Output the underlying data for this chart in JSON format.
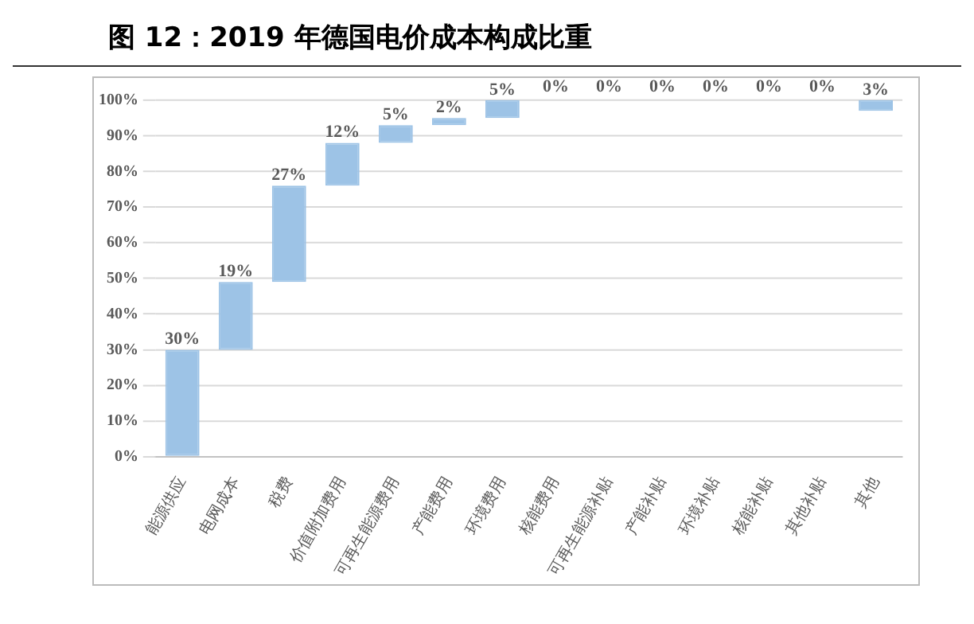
{
  "chart_data": {
    "type": "bar",
    "title": "图 12：2019 年德国电价成本构成比重",
    "categories": [
      "能源供应",
      "电网成本",
      "税费",
      "价值附加费用",
      "可再生能源费用",
      "产能费用",
      "环境费用",
      "核能费用",
      "可再生能源补贴",
      "产能补贴",
      "环境补贴",
      "核能补贴",
      "其他补贴",
      "其他"
    ],
    "values": [
      30,
      19,
      27,
      12,
      5,
      2,
      5,
      0,
      0,
      0,
      0,
      0,
      0,
      3
    ],
    "base": [
      0,
      30,
      49,
      76,
      88,
      93,
      95,
      100,
      100,
      100,
      100,
      100,
      100,
      97
    ],
    "value_labels": [
      "30%",
      "19%",
      "27%",
      "12%",
      "5%",
      "2%",
      "5%",
      "0%",
      "0%",
      "0%",
      "0%",
      "0%",
      "0%",
      "3%"
    ],
    "color": "#9dc3e6",
    "ylim": [
      0,
      100
    ],
    "yticks": [
      {
        "value": 0,
        "label": "0%"
      },
      {
        "value": 10,
        "label": "10%"
      },
      {
        "value": 20,
        "label": "20%"
      },
      {
        "value": 30,
        "label": "30%"
      },
      {
        "value": 40,
        "label": "40%"
      },
      {
        "value": 50,
        "label": "50%"
      },
      {
        "value": 60,
        "label": "60%"
      },
      {
        "value": 70,
        "label": "70%"
      },
      {
        "value": 80,
        "label": "80%"
      },
      {
        "value": 90,
        "label": "90%"
      },
      {
        "value": 100,
        "label": "100%"
      }
    ],
    "grid": "y",
    "legend": false
  }
}
